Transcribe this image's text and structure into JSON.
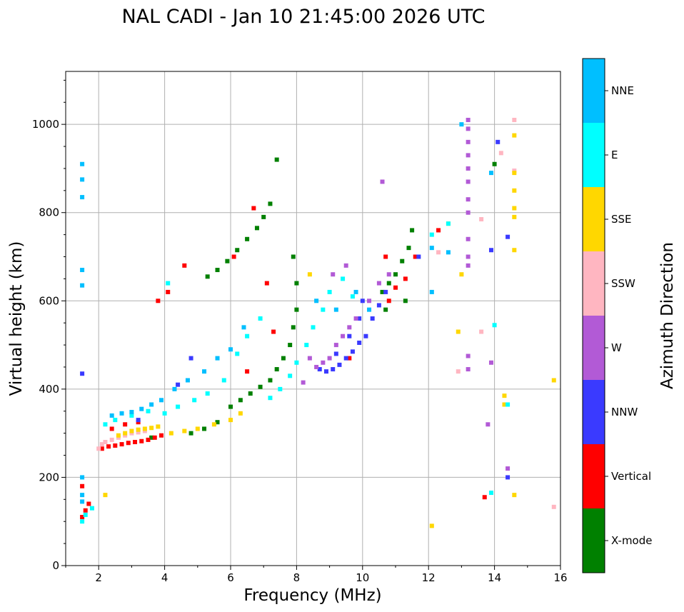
{
  "chart_data": {
    "type": "scatter",
    "title": "NAL CADI - Jan 10 21:45:00 2026 UTC",
    "xlabel": "Frequency (MHz)",
    "ylabel": "Virtual height (km)",
    "xlim": [
      1,
      16
    ],
    "ylim": [
      0,
      1120
    ],
    "x_ticks": [
      2,
      4,
      6,
      8,
      10,
      12,
      14,
      16
    ],
    "y_ticks": [
      0,
      200,
      400,
      600,
      800,
      1000
    ],
    "grid": true,
    "colorbar": {
      "label": "Azimuth Direction",
      "position": "right",
      "categories": [
        {
          "name": "X-mode",
          "color": "#008000"
        },
        {
          "name": "Vertical",
          "color": "#ff0000"
        },
        {
          "name": "NNW",
          "color": "#3a3aff"
        },
        {
          "name": "W",
          "color": "#b25ad6"
        },
        {
          "name": "SSW",
          "color": "#ffb6c1"
        },
        {
          "name": "SSE",
          "color": "#ffd700"
        },
        {
          "name": "E",
          "color": "#00ffff"
        },
        {
          "name": "NNE",
          "color": "#00bfff"
        }
      ]
    },
    "series": [
      {
        "name": "X-mode",
        "points": [
          [
            6.0,
            360
          ],
          [
            6.3,
            375
          ],
          [
            6.6,
            390
          ],
          [
            6.9,
            405
          ],
          [
            7.2,
            420
          ],
          [
            7.4,
            445
          ],
          [
            7.6,
            470
          ],
          [
            7.8,
            500
          ],
          [
            7.9,
            540
          ],
          [
            8.0,
            580
          ],
          [
            8.0,
            640
          ],
          [
            7.9,
            700
          ],
          [
            5.3,
            655
          ],
          [
            5.6,
            670
          ],
          [
            5.9,
            690
          ],
          [
            6.2,
            715
          ],
          [
            6.5,
            740
          ],
          [
            6.8,
            765
          ],
          [
            7.0,
            790
          ],
          [
            7.2,
            820
          ],
          [
            7.4,
            920
          ],
          [
            10.6,
            620
          ],
          [
            10.8,
            640
          ],
          [
            11.0,
            660
          ],
          [
            11.2,
            690
          ],
          [
            11.4,
            720
          ],
          [
            11.5,
            760
          ],
          [
            10.7,
            580
          ],
          [
            11.3,
            600
          ],
          [
            4.8,
            300
          ],
          [
            5.2,
            310
          ],
          [
            5.6,
            325
          ],
          [
            3.6,
            290
          ],
          [
            14.0,
            910
          ]
        ]
      },
      {
        "name": "Vertical",
        "points": [
          [
            2.1,
            265
          ],
          [
            2.3,
            270
          ],
          [
            2.5,
            272
          ],
          [
            2.7,
            275
          ],
          [
            2.9,
            278
          ],
          [
            3.1,
            280
          ],
          [
            3.3,
            282
          ],
          [
            3.5,
            285
          ],
          [
            3.7,
            290
          ],
          [
            3.9,
            295
          ],
          [
            2.4,
            310
          ],
          [
            2.8,
            320
          ],
          [
            3.2,
            325
          ],
          [
            1.5,
            110
          ],
          [
            1.6,
            125
          ],
          [
            1.7,
            140
          ],
          [
            1.5,
            180
          ],
          [
            3.8,
            600
          ],
          [
            4.1,
            620
          ],
          [
            4.6,
            680
          ],
          [
            10.8,
            600
          ],
          [
            11.0,
            630
          ],
          [
            11.3,
            650
          ],
          [
            10.7,
            700
          ],
          [
            11.6,
            700
          ],
          [
            12.3,
            760
          ],
          [
            13.7,
            155
          ],
          [
            6.5,
            440
          ],
          [
            7.1,
            640
          ],
          [
            6.1,
            700
          ],
          [
            6.7,
            810
          ],
          [
            7.3,
            530
          ],
          [
            9.6,
            470
          ]
        ]
      },
      {
        "name": "NNW",
        "points": [
          [
            8.7,
            445
          ],
          [
            8.9,
            440
          ],
          [
            9.1,
            445
          ],
          [
            9.3,
            455
          ],
          [
            9.5,
            470
          ],
          [
            9.7,
            485
          ],
          [
            9.9,
            505
          ],
          [
            10.1,
            520
          ],
          [
            10.3,
            560
          ],
          [
            10.5,
            590
          ],
          [
            10.7,
            620
          ],
          [
            9.2,
            480
          ],
          [
            9.6,
            520
          ],
          [
            9.9,
            560
          ],
          [
            10.0,
            600
          ],
          [
            11.7,
            700
          ],
          [
            14.1,
            960
          ],
          [
            13.9,
            715
          ],
          [
            14.4,
            745
          ],
          [
            14.4,
            200
          ],
          [
            4.4,
            410
          ],
          [
            4.8,
            470
          ],
          [
            3.2,
            330
          ],
          [
            1.5,
            435
          ]
        ]
      },
      {
        "name": "W",
        "points": [
          [
            8.4,
            470
          ],
          [
            8.6,
            450
          ],
          [
            8.8,
            460
          ],
          [
            9.0,
            470
          ],
          [
            9.2,
            500
          ],
          [
            9.4,
            520
          ],
          [
            9.6,
            540
          ],
          [
            9.8,
            560
          ],
          [
            10.2,
            600
          ],
          [
            10.5,
            640
          ],
          [
            10.8,
            660
          ],
          [
            13.2,
            1010
          ],
          [
            13.2,
            990
          ],
          [
            13.2,
            960
          ],
          [
            13.2,
            930
          ],
          [
            13.2,
            900
          ],
          [
            13.2,
            870
          ],
          [
            13.2,
            830
          ],
          [
            13.2,
            800
          ],
          [
            13.2,
            740
          ],
          [
            13.2,
            700
          ],
          [
            13.2,
            680
          ],
          [
            13.2,
            475
          ],
          [
            13.2,
            445
          ],
          [
            13.9,
            460
          ],
          [
            13.8,
            320
          ],
          [
            14.4,
            220
          ],
          [
            10.6,
            870
          ],
          [
            9.5,
            680
          ],
          [
            9.1,
            660
          ],
          [
            8.2,
            415
          ]
        ]
      },
      {
        "name": "SSW",
        "points": [
          [
            2.0,
            265
          ],
          [
            2.1,
            275
          ],
          [
            2.2,
            280
          ],
          [
            2.4,
            285
          ],
          [
            2.6,
            290
          ],
          [
            2.8,
            295
          ],
          [
            3.0,
            300
          ],
          [
            3.2,
            302
          ],
          [
            3.4,
            305
          ],
          [
            15.8,
            133
          ],
          [
            14.6,
            1010
          ],
          [
            14.6,
            895
          ],
          [
            14.2,
            935
          ],
          [
            13.6,
            785
          ],
          [
            13.6,
            530
          ],
          [
            12.9,
            440
          ],
          [
            12.3,
            710
          ]
        ]
      },
      {
        "name": "SSE",
        "points": [
          [
            2.6,
            295
          ],
          [
            2.8,
            300
          ],
          [
            3.0,
            305
          ],
          [
            3.2,
            308
          ],
          [
            3.4,
            310
          ],
          [
            3.6,
            312
          ],
          [
            3.8,
            315
          ],
          [
            4.2,
            300
          ],
          [
            4.6,
            305
          ],
          [
            5.0,
            310
          ],
          [
            5.5,
            320
          ],
          [
            6.0,
            330
          ],
          [
            6.3,
            345
          ],
          [
            14.6,
            975
          ],
          [
            14.6,
            890
          ],
          [
            14.6,
            850
          ],
          [
            14.6,
            810
          ],
          [
            14.6,
            790
          ],
          [
            14.6,
            715
          ],
          [
            14.3,
            385
          ],
          [
            14.3,
            365
          ],
          [
            14.6,
            160
          ],
          [
            13.0,
            660
          ],
          [
            12.9,
            530
          ],
          [
            12.1,
            90
          ],
          [
            15.8,
            420
          ],
          [
            12.6,
            775
          ],
          [
            8.4,
            660
          ],
          [
            2.2,
            160
          ]
        ]
      },
      {
        "name": "E",
        "points": [
          [
            2.2,
            320
          ],
          [
            2.5,
            330
          ],
          [
            3.0,
            340
          ],
          [
            3.5,
            350
          ],
          [
            4.0,
            345
          ],
          [
            4.4,
            360
          ],
          [
            4.9,
            375
          ],
          [
            5.3,
            390
          ],
          [
            5.8,
            420
          ],
          [
            6.2,
            480
          ],
          [
            6.5,
            520
          ],
          [
            6.9,
            560
          ],
          [
            7.2,
            380
          ],
          [
            7.5,
            400
          ],
          [
            7.8,
            430
          ],
          [
            8.0,
            460
          ],
          [
            8.3,
            500
          ],
          [
            8.5,
            540
          ],
          [
            8.8,
            580
          ],
          [
            9.0,
            620
          ],
          [
            9.4,
            650
          ],
          [
            9.7,
            610
          ],
          [
            1.5,
            100
          ],
          [
            1.6,
            115
          ],
          [
            1.8,
            130
          ],
          [
            14.4,
            365
          ],
          [
            14.0,
            545
          ],
          [
            13.9,
            165
          ],
          [
            12.6,
            775
          ],
          [
            12.1,
            750
          ],
          [
            4.1,
            640
          ]
        ]
      },
      {
        "name": "NNE",
        "points": [
          [
            2.4,
            340
          ],
          [
            2.7,
            345
          ],
          [
            3.0,
            348
          ],
          [
            3.3,
            355
          ],
          [
            3.6,
            365
          ],
          [
            3.9,
            375
          ],
          [
            4.3,
            400
          ],
          [
            4.7,
            420
          ],
          [
            5.2,
            440
          ],
          [
            5.6,
            470
          ],
          [
            6.0,
            490
          ],
          [
            6.4,
            540
          ],
          [
            1.5,
            910
          ],
          [
            1.5,
            875
          ],
          [
            1.5,
            835
          ],
          [
            1.5,
            670
          ],
          [
            1.5,
            635
          ],
          [
            1.5,
            200
          ],
          [
            1.5,
            160
          ],
          [
            1.5,
            145
          ],
          [
            12.1,
            720
          ],
          [
            12.6,
            710
          ],
          [
            12.1,
            620
          ],
          [
            13.9,
            890
          ],
          [
            13.0,
            1000
          ],
          [
            10.2,
            580
          ],
          [
            9.8,
            620
          ],
          [
            9.2,
            580
          ],
          [
            8.6,
            600
          ]
        ]
      }
    ]
  }
}
